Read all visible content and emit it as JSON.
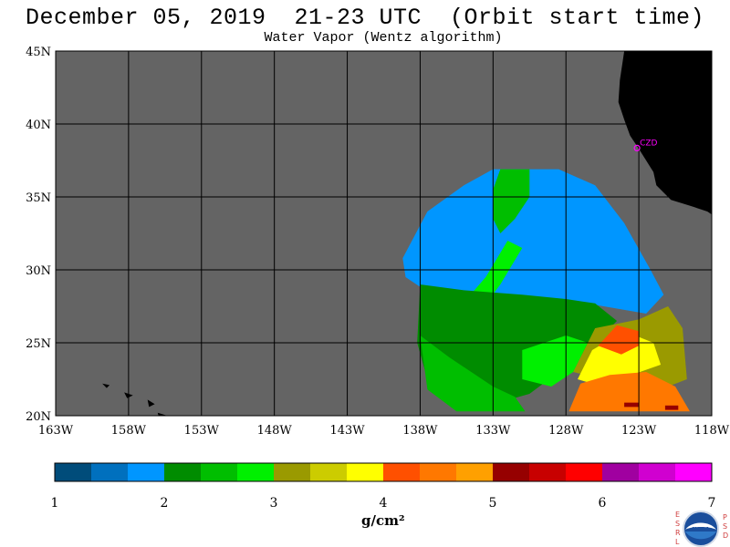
{
  "title": "December 05, 2019  21-23 UTC  (Orbit start time)",
  "subtitle": "Water Vapor (Wentz algorithm)",
  "station_label": "CZD",
  "units_label": "g/cm²",
  "colors": {
    "background": "#ffffff",
    "no_data_gray": "#646464",
    "land_black": "#000000",
    "grid_black": "#000000",
    "station_magenta": "#ff00ff"
  },
  "colorbar": {
    "min": 1,
    "max": 7,
    "step_per_bin": 0.3333,
    "bins": [
      "#004c7a",
      "#0070be",
      "#0096ff",
      "#008c00",
      "#00be00",
      "#00f000",
      "#9a9a00",
      "#cccc00",
      "#ffff00",
      "#ff5000",
      "#ff7800",
      "#ffa000",
      "#960000",
      "#c80000",
      "#ff0000",
      "#a000a0",
      "#d000d0",
      "#ff00ff"
    ],
    "tick_labels": [
      "1",
      "2",
      "3",
      "4",
      "5",
      "6",
      "7"
    ]
  },
  "logo": {
    "name": "NOAA",
    "left_letters": [
      "E",
      "S",
      "R",
      "L"
    ],
    "right_letters": [
      "P",
      "S",
      "D"
    ]
  },
  "chart_data": {
    "type": "heatmap",
    "variable": "Water Vapor (Wentz algorithm)",
    "units": "g/cm²",
    "value_range": [
      1,
      7
    ],
    "x_axis": {
      "label": "",
      "range": [
        -163,
        -118
      ],
      "tick_labels": [
        "163W",
        "158W",
        "153W",
        "148W",
        "143W",
        "138W",
        "133W",
        "128W",
        "123W",
        "118W"
      ]
    },
    "y_axis": {
      "label": "",
      "range": [
        20,
        45
      ],
      "tick_labels": [
        "20N",
        "25N",
        "30N",
        "35N",
        "40N",
        "45N"
      ]
    },
    "grid": true,
    "station": {
      "name": "CZD",
      "lon": -123.0,
      "lat": 38.6
    },
    "regions": [
      {
        "value": 1.8,
        "polygon": [
          [
            -139.2,
            30.8
          ],
          [
            -137.5,
            34.0
          ],
          [
            -135.0,
            35.8
          ],
          [
            -133.0,
            36.9
          ],
          [
            -128.5,
            36.9
          ],
          [
            -126.0,
            35.8
          ],
          [
            -124.0,
            33.2
          ],
          [
            -122.2,
            30.0
          ],
          [
            -121.3,
            28.3
          ],
          [
            -122.5,
            27.0
          ],
          [
            -126.0,
            27.6
          ],
          [
            -130.0,
            27.8
          ],
          [
            -134.0,
            28.0
          ],
          [
            -137.5,
            28.5
          ],
          [
            -139.0,
            29.5
          ]
        ]
      },
      {
        "value": 2.7,
        "polygon": [
          [
            -136.5,
            25.5
          ],
          [
            -134.0,
            27.0
          ],
          [
            -132.5,
            29.0
          ],
          [
            -131.0,
            31.5
          ],
          [
            -132.0,
            32.0
          ],
          [
            -133.5,
            29.5
          ],
          [
            -135.5,
            27.2
          ],
          [
            -137.5,
            26.5
          ]
        ]
      },
      {
        "value": 2.6,
        "polygon": [
          [
            -132.5,
            36.9
          ],
          [
            -130.5,
            36.9
          ],
          [
            -130.5,
            35.0
          ],
          [
            -131.5,
            33.5
          ],
          [
            -132.5,
            32.5
          ],
          [
            -133.0,
            33.5
          ],
          [
            -133.0,
            35.5
          ]
        ]
      },
      {
        "value": 2.2,
        "polygon": [
          [
            -138.0,
            29.0
          ],
          [
            -135.0,
            28.6
          ],
          [
            -131.0,
            28.3
          ],
          [
            -128.0,
            28.0
          ],
          [
            -126.0,
            27.7
          ],
          [
            -124.5,
            26.5
          ],
          [
            -126.5,
            24.5
          ],
          [
            -128.5,
            23.0
          ],
          [
            -130.5,
            21.5
          ],
          [
            -133.0,
            20.8
          ],
          [
            -135.5,
            21.2
          ],
          [
            -137.5,
            22.5
          ],
          [
            -138.2,
            25.0
          ]
        ]
      },
      {
        "value": 2.6,
        "polygon": [
          [
            -138.0,
            25.5
          ],
          [
            -136.0,
            24.0
          ],
          [
            -133.0,
            22.0
          ],
          [
            -131.5,
            21.3
          ],
          [
            -130.8,
            20.3
          ],
          [
            -135.5,
            20.3
          ],
          [
            -137.5,
            21.8
          ]
        ]
      },
      {
        "value": 2.9,
        "polygon": [
          [
            -131.0,
            24.5
          ],
          [
            -128.0,
            25.5
          ],
          [
            -126.5,
            25.0
          ],
          [
            -127.5,
            23.0
          ],
          [
            -129.0,
            22.0
          ],
          [
            -131.0,
            22.5
          ]
        ]
      },
      {
        "value": 3.3,
        "polygon": [
          [
            -127.5,
            23.0
          ],
          [
            -126.0,
            26.0
          ],
          [
            -123.0,
            26.6
          ],
          [
            -121.0,
            27.5
          ],
          [
            -120.0,
            26.0
          ],
          [
            -119.7,
            22.5
          ],
          [
            -121.0,
            22.0
          ],
          [
            -123.0,
            22.5
          ],
          [
            -125.5,
            22.5
          ]
        ]
      },
      {
        "value": 3.7,
        "polygon": [
          [
            -127.2,
            22.5
          ],
          [
            -126.2,
            24.5
          ],
          [
            -124.0,
            25.8
          ],
          [
            -122.0,
            25.0
          ],
          [
            -121.5,
            23.5
          ],
          [
            -123.5,
            22.8
          ],
          [
            -125.5,
            22.0
          ]
        ]
      },
      {
        "value": 4.3,
        "polygon": [
          [
            -125.8,
            24.8
          ],
          [
            -124.5,
            26.2
          ],
          [
            -123.0,
            25.8
          ],
          [
            -123.0,
            24.8
          ],
          [
            -124.2,
            24.2
          ]
        ]
      },
      {
        "value": 4.5,
        "polygon": [
          [
            -127.8,
            20.3
          ],
          [
            -127.0,
            22.2
          ],
          [
            -125.0,
            22.8
          ],
          [
            -122.5,
            23.0
          ],
          [
            -120.5,
            22.0
          ],
          [
            -119.5,
            20.3
          ]
        ]
      },
      {
        "value": 5.2,
        "polygon": [
          [
            -124.0,
            20.6
          ],
          [
            -124.0,
            20.9
          ],
          [
            -123.0,
            20.9
          ],
          [
            -123.0,
            20.6
          ]
        ]
      },
      {
        "value": 5.2,
        "polygon": [
          [
            -121.2,
            20.4
          ],
          [
            -121.2,
            20.7
          ],
          [
            -120.3,
            20.7
          ],
          [
            -120.3,
            20.4
          ]
        ]
      }
    ],
    "land_polygons": [
      [
        [
          -124.0,
          45.0
        ],
        [
          -124.3,
          43.0
        ],
        [
          -124.4,
          41.5
        ],
        [
          -124.0,
          40.3
        ],
        [
          -123.6,
          39.2
        ],
        [
          -123.0,
          38.3
        ],
        [
          -122.5,
          37.5
        ],
        [
          -122.0,
          36.7
        ],
        [
          -121.8,
          35.8
        ],
        [
          -120.8,
          34.8
        ],
        [
          -119.5,
          34.4
        ],
        [
          -118.3,
          34.0
        ],
        [
          -118.0,
          33.8
        ],
        [
          -118.0,
          45.0
        ]
      ],
      [
        [
          -159.8,
          22.2
        ],
        [
          -159.3,
          22.1
        ],
        [
          -159.5,
          21.9
        ]
      ],
      [
        [
          -158.3,
          21.6
        ],
        [
          -157.7,
          21.4
        ],
        [
          -158.1,
          21.2
        ]
      ],
      [
        [
          -156.7,
          21.1
        ],
        [
          -156.2,
          20.8
        ],
        [
          -156.6,
          20.6
        ]
      ],
      [
        [
          -156.0,
          20.2
        ],
        [
          -155.0,
          19.9
        ],
        [
          -155.8,
          19.5
        ]
      ]
    ]
  }
}
